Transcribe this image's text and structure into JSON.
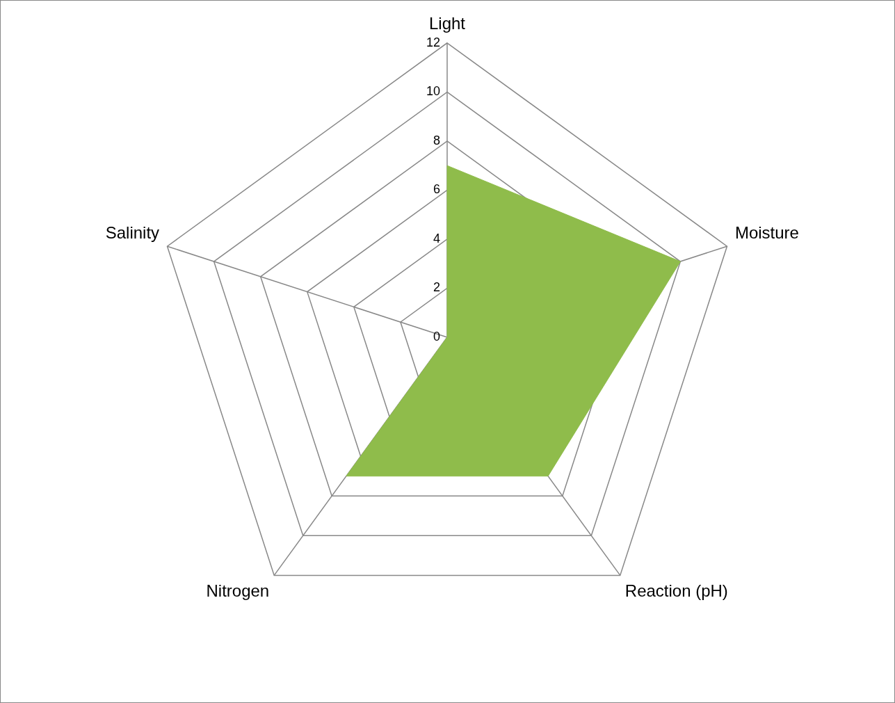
{
  "chart_data": {
    "type": "radar",
    "categories": [
      "Light",
      "Moisture",
      "Reaction (pH)",
      "Nitrogen",
      "Salinity"
    ],
    "series": [
      {
        "color": "#8fbc4b",
        "values": [
          7,
          10,
          7,
          7,
          0
        ]
      }
    ],
    "ylim": [
      0,
      12
    ],
    "yticks": [
      0,
      2,
      4,
      6,
      8,
      10,
      12
    ],
    "grid": true,
    "legend": false,
    "marker": "none"
  }
}
